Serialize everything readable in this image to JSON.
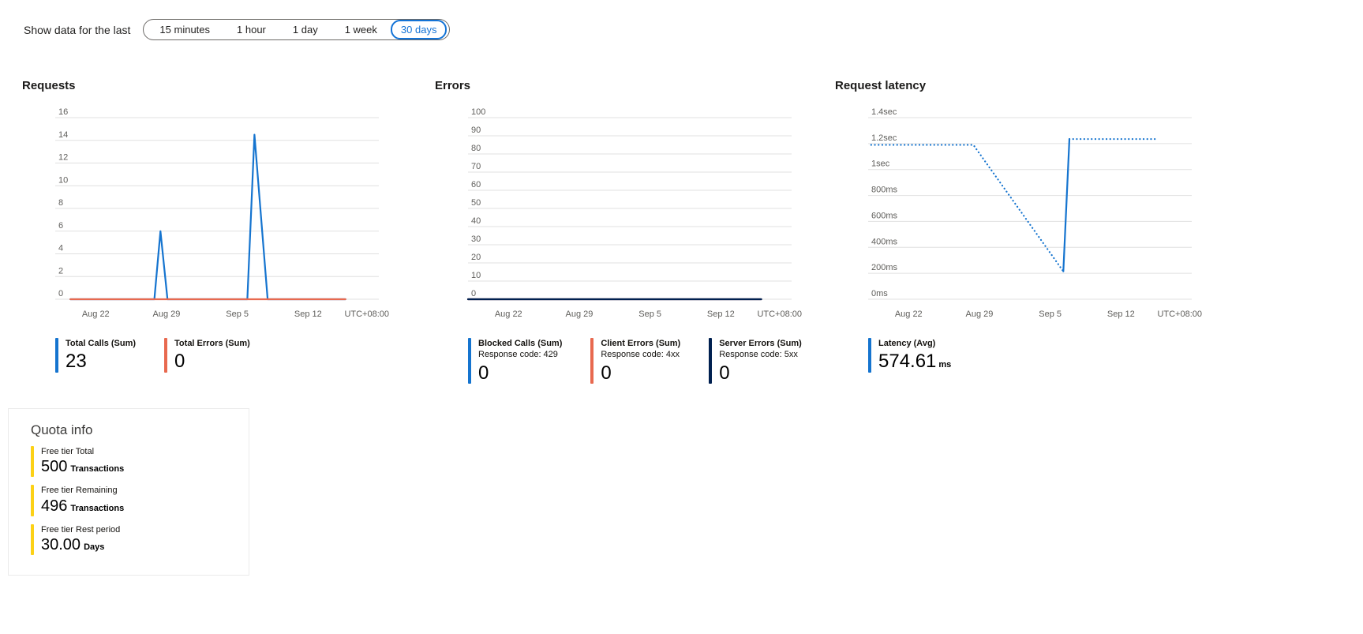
{
  "timefilter": {
    "label": "Show data for the last",
    "options": [
      "15 minutes",
      "1 hour",
      "1 day",
      "1 week",
      "30 days"
    ],
    "selected": "30 days",
    "accent": "#1373d6"
  },
  "chart_data": [
    {
      "type": "line",
      "title": "Requests",
      "timezone": "UTC+08:00",
      "x_domain": [
        0,
        32
      ],
      "x_ticks": [
        {
          "day": 4,
          "label": "Aug 22"
        },
        {
          "day": 11,
          "label": "Aug 29"
        },
        {
          "day": 18,
          "label": "Sep 5"
        },
        {
          "day": 25,
          "label": "Sep 12"
        }
      ],
      "ylim": [
        0,
        16
      ],
      "y_ticks": [
        {
          "value": 0,
          "label": "0"
        },
        {
          "value": 2,
          "label": "2"
        },
        {
          "value": 4,
          "label": "4"
        },
        {
          "value": 6,
          "label": "6"
        },
        {
          "value": 8,
          "label": "8"
        },
        {
          "value": 10,
          "label": "10"
        },
        {
          "value": 12,
          "label": "12"
        },
        {
          "value": 14,
          "label": "14"
        },
        {
          "value": 16,
          "label": "16"
        }
      ],
      "series": [
        {
          "name": "Total Calls (Sum)",
          "color": "#1574cf",
          "segments": [
            {
              "style": "solid",
              "points": [
                [
                  1.5,
                  0
                ],
                [
                  9.8,
                  0
                ],
                [
                  10.4,
                  6
                ],
                [
                  11.1,
                  0
                ],
                [
                  19.0,
                  0
                ],
                [
                  19.7,
                  14.5
                ],
                [
                  21.0,
                  0
                ],
                [
                  28.7,
                  0
                ]
              ]
            }
          ]
        },
        {
          "name": "Total Errors (Sum)",
          "color": "#e8694f",
          "segments": [
            {
              "style": "solid",
              "points": [
                [
                  1.5,
                  0
                ],
                [
                  28.7,
                  0
                ]
              ]
            }
          ]
        }
      ],
      "legend": [
        {
          "label": "Total Calls (Sum)",
          "value": "23",
          "unit": "",
          "color": "#1574cf"
        },
        {
          "label": "Total Errors (Sum)",
          "value": "0",
          "unit": "",
          "color": "#e8694f"
        }
      ]
    },
    {
      "type": "line",
      "title": "Errors",
      "timezone": "UTC+08:00",
      "x_domain": [
        0,
        32
      ],
      "x_ticks": [
        {
          "day": 4,
          "label": "Aug 22"
        },
        {
          "day": 11,
          "label": "Aug 29"
        },
        {
          "day": 18,
          "label": "Sep 5"
        },
        {
          "day": 25,
          "label": "Sep 12"
        }
      ],
      "ylim": [
        0,
        100
      ],
      "y_ticks": [
        {
          "value": 0,
          "label": "0"
        },
        {
          "value": 10,
          "label": "10"
        },
        {
          "value": 20,
          "label": "20"
        },
        {
          "value": 30,
          "label": "30"
        },
        {
          "value": 40,
          "label": "40"
        },
        {
          "value": 50,
          "label": "50"
        },
        {
          "value": 60,
          "label": "60"
        },
        {
          "value": 70,
          "label": "70"
        },
        {
          "value": 80,
          "label": "80"
        },
        {
          "value": 90,
          "label": "90"
        },
        {
          "value": 100,
          "label": "100"
        }
      ],
      "series": [
        {
          "name": "Blocked Calls (Sum)",
          "color": "#1574cf",
          "segments": [
            {
              "style": "solid",
              "points": [
                [
                  0,
                  0
                ],
                [
                  29,
                  0
                ]
              ]
            }
          ]
        },
        {
          "name": "Client Errors (Sum)",
          "color": "#e8694f",
          "segments": [
            {
              "style": "solid",
              "points": [
                [
                  0,
                  0
                ],
                [
                  29,
                  0
                ]
              ]
            }
          ]
        },
        {
          "name": "Server Errors (Sum)",
          "color": "#002050",
          "segments": [
            {
              "style": "solid",
              "points": [
                [
                  0,
                  0
                ],
                [
                  29,
                  0
                ]
              ]
            }
          ]
        }
      ],
      "legend": [
        {
          "label": "Blocked Calls (Sum)",
          "sublabel": "Response code: 429",
          "value": "0",
          "unit": "",
          "color": "#1574cf"
        },
        {
          "label": "Client Errors (Sum)",
          "sublabel": "Response code: 4xx",
          "value": "0",
          "unit": "",
          "color": "#e8694f"
        },
        {
          "label": "Server Errors (Sum)",
          "sublabel": "Response code: 5xx",
          "value": "0",
          "unit": "",
          "color": "#002050"
        }
      ]
    },
    {
      "type": "line",
      "title": "Request latency",
      "timezone": "UTC+08:00",
      "x_domain": [
        0,
        32
      ],
      "x_ticks": [
        {
          "day": 4,
          "label": "Aug 22"
        },
        {
          "day": 11,
          "label": "Aug 29"
        },
        {
          "day": 18,
          "label": "Sep 5"
        },
        {
          "day": 25,
          "label": "Sep 12"
        }
      ],
      "ylim": [
        0,
        1400
      ],
      "y_ticks": [
        {
          "value": 0,
          "label": "0ms"
        },
        {
          "value": 200,
          "label": "200ms"
        },
        {
          "value": 400,
          "label": "400ms"
        },
        {
          "value": 600,
          "label": "600ms"
        },
        {
          "value": 800,
          "label": "800ms"
        },
        {
          "value": 1000,
          "label": "1sec"
        },
        {
          "value": 1200,
          "label": "1.2sec"
        },
        {
          "value": 1400,
          "label": "1.4sec"
        }
      ],
      "series": [
        {
          "name": "Latency (Avg)",
          "color": "#1574cf",
          "segments": [
            {
              "style": "dotted",
              "points": [
                [
                  0.3,
                  1190
                ],
                [
                  10.4,
                  1190
                ],
                [
                  19.3,
                  215
                ]
              ]
            },
            {
              "style": "solid",
              "points": [
                [
                  19.3,
                  215
                ],
                [
                  19.9,
                  1235
                ]
              ]
            },
            {
              "style": "dotted",
              "points": [
                [
                  19.9,
                  1235
                ],
                [
                  28.6,
                  1235
                ]
              ]
            }
          ]
        }
      ],
      "legend": [
        {
          "label": "Latency (Avg)",
          "value": "574.61",
          "unit": "ms",
          "color": "#1574cf"
        }
      ]
    }
  ],
  "quota": {
    "title": "Quota info",
    "bar_color": "#fcd116",
    "items": [
      {
        "label": "Free tier Total",
        "value": "500",
        "unit": "Transactions"
      },
      {
        "label": "Free tier Remaining",
        "value": "496",
        "unit": "Transactions"
      },
      {
        "label": "Free tier Rest period",
        "value": "30.00",
        "unit": "Days"
      }
    ]
  }
}
